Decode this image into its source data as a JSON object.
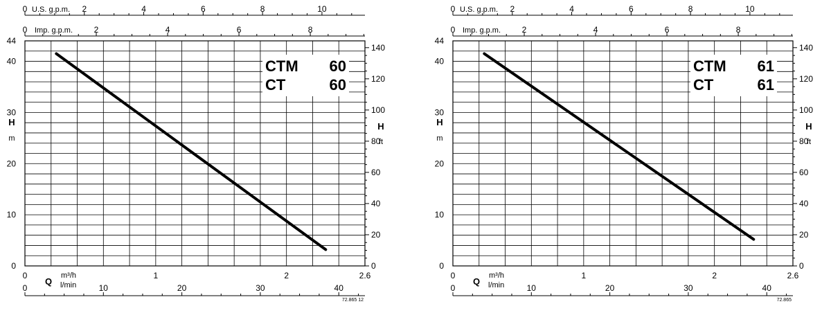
{
  "chart_data": [
    {
      "type": "line",
      "series": [
        {
          "x": [
            0.24,
            2.3
          ],
          "y": [
            41.5,
            3.2
          ]
        }
      ],
      "model_lines": [
        {
          "name": "CTM",
          "value": "60"
        },
        {
          "name": "CT",
          "value": "60"
        }
      ],
      "xlabel": "Q",
      "x_units": [
        "m³/h",
        "l/min"
      ],
      "xlim": [
        0,
        2.6
      ],
      "x_ticks_m3h": [
        0,
        1,
        2,
        2.6
      ],
      "x_ticks_lmin": [
        0,
        10,
        20,
        30,
        40
      ],
      "x_ticks_usgpm": [
        0,
        2,
        4,
        6,
        8,
        10
      ],
      "x_ticks_impgpm": [
        0,
        2,
        4,
        6,
        8
      ],
      "usgpm_label": "U.S. g.p.m.",
      "impgpm_label": "Imp. g.p.m.",
      "ylabel_left": "H",
      "ylabel_left_unit": "m",
      "ylim": [
        0,
        44
      ],
      "y_ticks_m": [
        0,
        10,
        20,
        30,
        40,
        44
      ],
      "ylabel_right": "H",
      "ylabel_right_unit": "ft",
      "y_ticks_ft": [
        0,
        20,
        40,
        60,
        80,
        100,
        120,
        140
      ],
      "grid": true,
      "ref_code": "72.865 12"
    },
    {
      "type": "line",
      "series": [
        {
          "x": [
            0.24,
            2.3
          ],
          "y": [
            41.5,
            5.2
          ]
        }
      ],
      "model_lines": [
        {
          "name": "CTM",
          "value": "61"
        },
        {
          "name": "CT",
          "value": "61"
        }
      ],
      "xlabel": "Q",
      "x_units": [
        "m³/h",
        "l/min"
      ],
      "xlim": [
        0,
        2.6
      ],
      "x_ticks_m3h": [
        0,
        1,
        2,
        2.6
      ],
      "x_ticks_lmin": [
        0,
        10,
        20,
        30,
        40
      ],
      "x_ticks_usgpm": [
        0,
        2,
        4,
        6,
        8,
        10
      ],
      "x_ticks_impgpm": [
        0,
        2,
        4,
        6,
        8
      ],
      "usgpm_label": "U.S. g.p.m.",
      "impgpm_label": "Imp. g.p.m.",
      "ylabel_left": "H",
      "ylabel_left_unit": "m",
      "ylim": [
        0,
        44
      ],
      "y_ticks_m": [
        0,
        10,
        20,
        30,
        40,
        44
      ],
      "ylabel_right": "H",
      "ylabel_right_unit": "ft",
      "y_ticks_ft": [
        0,
        20,
        40,
        60,
        80,
        100,
        120,
        140
      ],
      "grid": true,
      "ref_code": "72.865"
    }
  ]
}
